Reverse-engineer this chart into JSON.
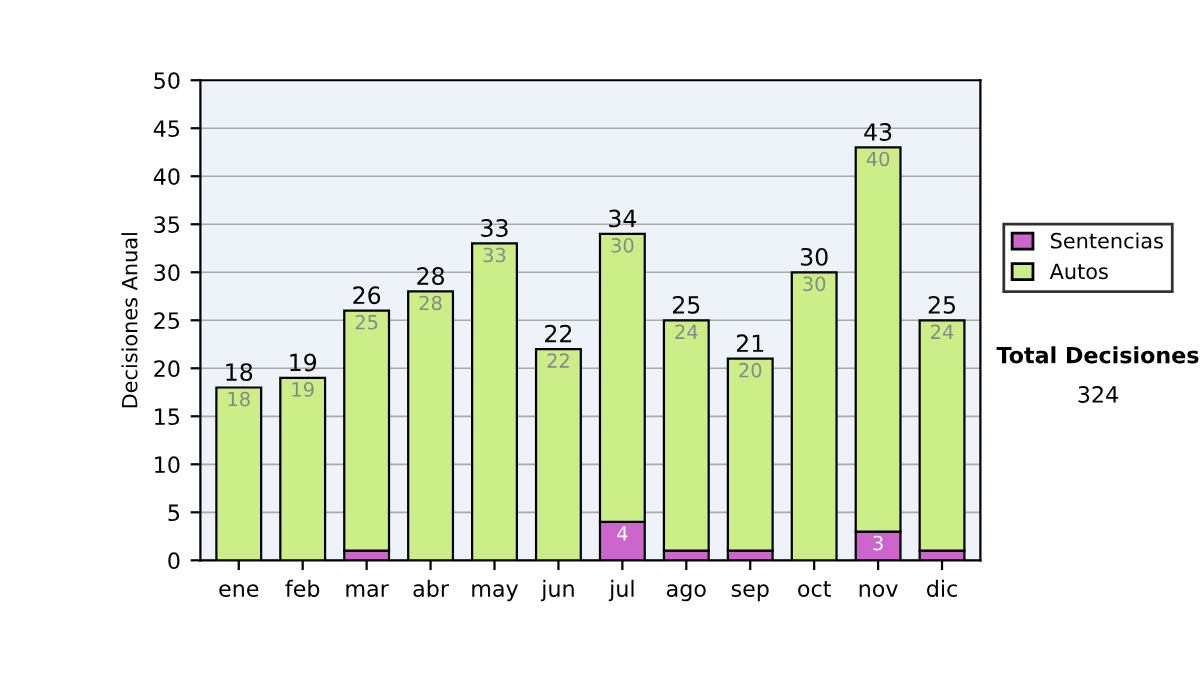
{
  "chart_data": {
    "type": "bar",
    "ylabel": "Decisiones Anual",
    "categories": [
      "ene",
      "feb",
      "mar",
      "abr",
      "may",
      "jun",
      "jul",
      "ago",
      "sep",
      "oct",
      "nov",
      "dic"
    ],
    "stacked": true,
    "series": [
      {
        "name": "Sentencias",
        "color": "#cc66cc",
        "values": [
          0,
          0,
          1,
          0,
          0,
          0,
          4,
          1,
          1,
          0,
          3,
          1
        ],
        "value_labels": [
          null,
          null,
          null,
          null,
          null,
          null,
          "4",
          null,
          null,
          null,
          "3",
          null
        ]
      },
      {
        "name": "Autos",
        "color": "#ccee88",
        "values": [
          18,
          19,
          25,
          28,
          33,
          22,
          30,
          24,
          20,
          30,
          40,
          24
        ],
        "value_labels": [
          "18",
          "19",
          "25",
          "28",
          "33",
          "22",
          "30",
          "24",
          "20",
          "30",
          "40",
          "24"
        ]
      }
    ],
    "totals": [
      "18",
      "19",
      "26",
      "28",
      "33",
      "22",
      "34",
      "25",
      "21",
      "30",
      "43",
      "25"
    ],
    "ylim": [
      0,
      50
    ],
    "yticks": [
      0,
      5,
      10,
      15,
      20,
      25,
      30,
      35,
      40,
      45,
      50
    ],
    "grid": "y",
    "legend": "right",
    "annotations": [
      "Total Decisiones",
      "324"
    ]
  }
}
